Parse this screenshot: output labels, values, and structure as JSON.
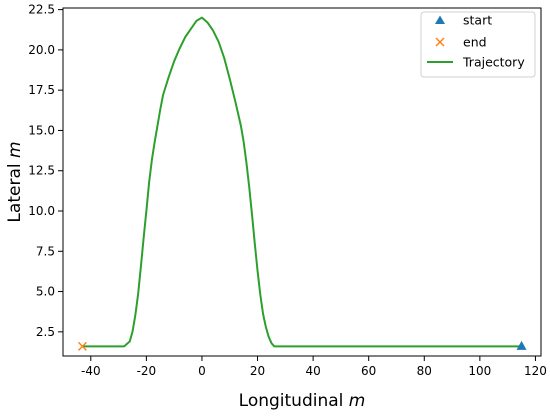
{
  "chart_data": {
    "type": "line",
    "title": "",
    "xlabel": "Longitudinal",
    "xlabel_unit": "m",
    "ylabel": "Lateral",
    "ylabel_unit": "m",
    "xlim": [
      -50,
      122
    ],
    "ylim": [
      1.0,
      22.6
    ],
    "xticks": [
      -40,
      -20,
      0,
      20,
      40,
      60,
      80,
      100,
      120
    ],
    "yticks": [
      2.5,
      5.0,
      7.5,
      10.0,
      12.5,
      15.0,
      17.5,
      20.0,
      22.5
    ],
    "grid": false,
    "legend_position": "upper-right",
    "series": [
      {
        "name": "start",
        "marker": "triangle",
        "color": "#1f77b4",
        "x": [
          115
        ],
        "y": [
          1.6
        ]
      },
      {
        "name": "end",
        "marker": "x",
        "color": "#ff7f0e",
        "x": [
          -43
        ],
        "y": [
          1.6
        ]
      },
      {
        "name": "Trajectory",
        "marker": "line",
        "color": "#2ca02c",
        "x": [
          -43,
          -28,
          -26,
          -25,
          -24,
          -23,
          -22,
          -21,
          -20,
          -19,
          -18,
          -17,
          -16,
          -15,
          -14,
          -12,
          -10,
          -8,
          -6,
          -4,
          -2,
          0,
          2,
          4,
          6,
          8,
          10,
          12,
          14,
          15,
          16,
          17,
          18,
          19,
          20,
          21,
          22,
          23,
          24,
          25,
          26,
          27,
          28,
          115
        ],
        "y": [
          1.6,
          1.6,
          1.9,
          2.5,
          3.5,
          4.8,
          6.5,
          8.3,
          10.0,
          11.8,
          13.2,
          14.3,
          15.3,
          16.3,
          17.2,
          18.3,
          19.3,
          20.1,
          20.8,
          21.3,
          21.8,
          22.0,
          21.7,
          21.2,
          20.5,
          19.5,
          18.2,
          16.8,
          15.3,
          14.3,
          13.0,
          11.5,
          9.8,
          8.0,
          6.3,
          4.8,
          3.6,
          2.8,
          2.2,
          1.8,
          1.6,
          1.6,
          1.6,
          1.6
        ]
      }
    ]
  }
}
